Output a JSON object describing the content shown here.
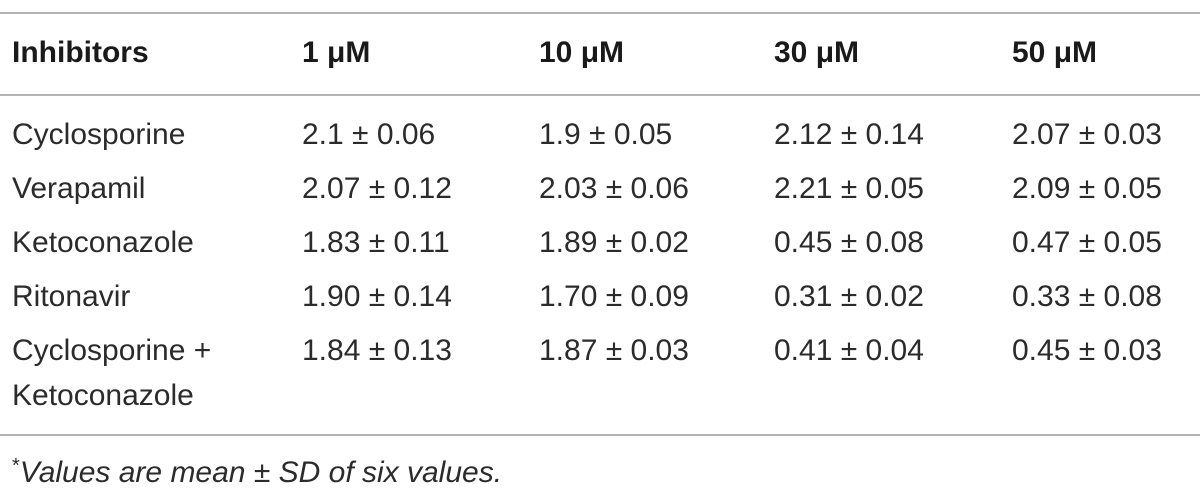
{
  "table": {
    "headers": [
      "Inhibitors",
      "1 μM",
      "10 μM",
      "30 μM",
      "50 μM"
    ],
    "rows": [
      {
        "inhibitor": [
          "Cyclosporine"
        ],
        "values": [
          "2.1 ± 0.06",
          "1.9 ± 0.05",
          "2.12 ± 0.14",
          "2.07 ± 0.03"
        ]
      },
      {
        "inhibitor": [
          "Verapamil"
        ],
        "values": [
          "2.07 ± 0.12",
          "2.03 ± 0.06",
          "2.21 ± 0.05",
          "2.09 ± 0.05"
        ]
      },
      {
        "inhibitor": [
          "Ketoconazole"
        ],
        "values": [
          "1.83 ± 0.11",
          "1.89 ± 0.02",
          "0.45 ± 0.08",
          "0.47 ± 0.05"
        ]
      },
      {
        "inhibitor": [
          "Ritonavir"
        ],
        "values": [
          "1.90 ± 0.14",
          "1.70 ± 0.09",
          "0.31 ± 0.02",
          "0.33 ± 0.08"
        ]
      },
      {
        "inhibitor": [
          "Cyclosporine +",
          "Ketoconazole"
        ],
        "values": [
          "1.84 ± 0.13",
          "1.87 ± 0.03",
          "0.41 ± 0.04",
          "0.45 ± 0.03"
        ]
      }
    ]
  },
  "footnote": {
    "mark": "*",
    "text": "Values are mean ± SD of six values."
  }
}
